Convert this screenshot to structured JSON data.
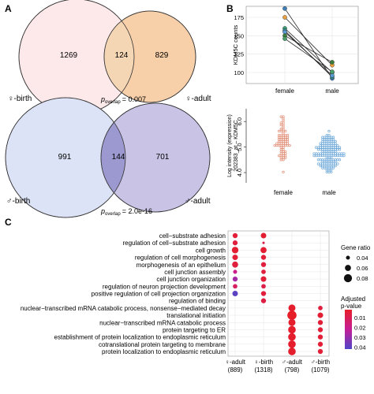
{
  "panels": {
    "A": {
      "label": "A",
      "venn_top": {
        "left_label": "♀-birth",
        "right_label": "♀-adult",
        "left_only": "1269",
        "overlap": "124",
        "right_only": "829",
        "p_prefix": "p",
        "p_sub": "overlap",
        "p_value": "= 0.007",
        "left_color": "#fde8ea",
        "right_color": "#f7cfa8"
      },
      "venn_bottom": {
        "left_label": "♂-birth",
        "right_label": "♂-adult",
        "left_only": "991",
        "overlap": "144",
        "right_only": "701",
        "p_prefix": "p",
        "p_sub": "overlap",
        "p_value": "= 2.0e-16",
        "left_color": "#dde3f6",
        "right_color": "#c9c4e6"
      }
    },
    "B": {
      "label": "B",
      "top_ylabel": "KDM5C counts",
      "bottom_ylabel": "Log intensity (expression) 202383_at – KDM5C",
      "x_categories": [
        "female",
        "male"
      ]
    },
    "C": {
      "label": "C",
      "legend_size_title": "Gene ratio",
      "legend_color_title": "Adjusted p-value",
      "legend_color_ticks": [
        "0.01",
        "0.02",
        "0.03",
        "0.04"
      ],
      "legend_size_ticks": [
        "0.04",
        "0.06",
        "0.08"
      ]
    }
  },
  "chart_data": [
    {
      "type": "line",
      "panel": "B-top",
      "categories": [
        "female",
        "male"
      ],
      "ylabel": "KDM5C counts",
      "ylim": [
        85,
        190
      ],
      "yticks": [
        100,
        125,
        150,
        175
      ],
      "series": [
        {
          "values": [
            187,
            92
          ],
          "color": "#3e7fb8"
        },
        {
          "values": [
            175,
            110
          ],
          "color": "#e8a040"
        },
        {
          "values": [
            160,
            100
          ],
          "color": "#3aa07a"
        },
        {
          "values": [
            157,
            94
          ],
          "color": "#3a8f8c"
        },
        {
          "values": [
            155,
            96
          ],
          "color": "#5b9bd5"
        },
        {
          "values": [
            150,
            114
          ],
          "color": "#3a7f3c"
        },
        {
          "values": [
            146,
            101
          ],
          "color": "#4a9f6a"
        }
      ],
      "grid": true
    },
    {
      "type": "scatter",
      "panel": "B-bottom",
      "categories": [
        "female",
        "male"
      ],
      "ylabel": "Log intensity (expression) 202383_at – KDM5C",
      "ylim": [
        3.6,
        6.5
      ],
      "yticks": [
        4.0,
        5.0,
        6.0
      ],
      "series": [
        {
          "name": "female",
          "color": "#e08a72",
          "center": 5.3,
          "spread": 0.55,
          "n": 70
        },
        {
          "name": "male",
          "color": "#6aa6d8",
          "center": 4.8,
          "spread": 0.45,
          "n": 150
        }
      ]
    },
    {
      "type": "dotplot",
      "panel": "C",
      "categories": [
        "♀-adult\n(889)",
        "♀-birth\n(1318)",
        "♂-adult\n(798)",
        "♂-birth\n(1079)"
      ],
      "terms": [
        "cell−substrate adhesion",
        "regulation of cell−substrate adhesion",
        "cell growth",
        "regulation of cell morphogenesis",
        "morphogenesis of an epithelium",
        "cell junction assembly",
        "cell junction organization",
        "regulation of neuron projection development",
        "positive regulation of cell projection organization",
        "regulation of binding",
        "nuclear−transcribed mRNA catabolic process, nonsense−mediated decay",
        "translational initiation",
        "nuclear−transcribed mRNA catabolic process",
        "protein targeting to ER",
        "establishment of protein localization to endoplasmic reticulum",
        "cotranslational protein targeting to membrane",
        "protein localization to endoplasmic reticulum"
      ],
      "points": [
        {
          "term": 0,
          "col": 0,
          "ratio": 0.05,
          "padj": 0.005
        },
        {
          "term": 0,
          "col": 1,
          "ratio": 0.055,
          "padj": 0.004
        },
        {
          "term": 1,
          "col": 0,
          "ratio": 0.05,
          "padj": 0.006
        },
        {
          "term": 1,
          "col": 1,
          "ratio": 0.025,
          "padj": 0.008
        },
        {
          "term": 2,
          "col": 0,
          "ratio": 0.065,
          "padj": 0.004
        },
        {
          "term": 2,
          "col": 1,
          "ratio": 0.06,
          "padj": 0.004
        },
        {
          "term": 3,
          "col": 0,
          "ratio": 0.055,
          "padj": 0.005
        },
        {
          "term": 3,
          "col": 1,
          "ratio": 0.05,
          "padj": 0.005
        },
        {
          "term": 4,
          "col": 0,
          "ratio": 0.06,
          "padj": 0.006
        },
        {
          "term": 4,
          "col": 1,
          "ratio": 0.05,
          "padj": 0.006
        },
        {
          "term": 5,
          "col": 0,
          "ratio": 0.04,
          "padj": 0.02
        },
        {
          "term": 5,
          "col": 1,
          "ratio": 0.045,
          "padj": 0.006
        },
        {
          "term": 6,
          "col": 0,
          "ratio": 0.05,
          "padj": 0.028
        },
        {
          "term": 6,
          "col": 1,
          "ratio": 0.055,
          "padj": 0.005
        },
        {
          "term": 7,
          "col": 0,
          "ratio": 0.045,
          "padj": 0.012
        },
        {
          "term": 7,
          "col": 1,
          "ratio": 0.045,
          "padj": 0.008
        },
        {
          "term": 8,
          "col": 0,
          "ratio": 0.055,
          "padj": 0.04
        },
        {
          "term": 8,
          "col": 1,
          "ratio": 0.05,
          "padj": 0.006
        },
        {
          "term": 9,
          "col": 1,
          "ratio": 0.05,
          "padj": 0.007
        },
        {
          "term": 10,
          "col": 2,
          "ratio": 0.07,
          "padj": 0.003
        },
        {
          "term": 10,
          "col": 3,
          "ratio": 0.045,
          "padj": 0.006
        },
        {
          "term": 11,
          "col": 2,
          "ratio": 0.09,
          "padj": 0.002
        },
        {
          "term": 11,
          "col": 3,
          "ratio": 0.055,
          "padj": 0.004
        },
        {
          "term": 12,
          "col": 2,
          "ratio": 0.07,
          "padj": 0.003
        },
        {
          "term": 12,
          "col": 3,
          "ratio": 0.05,
          "padj": 0.005
        },
        {
          "term": 13,
          "col": 2,
          "ratio": 0.075,
          "padj": 0.003
        },
        {
          "term": 13,
          "col": 3,
          "ratio": 0.05,
          "padj": 0.005
        },
        {
          "term": 14,
          "col": 2,
          "ratio": 0.075,
          "padj": 0.003
        },
        {
          "term": 14,
          "col": 3,
          "ratio": 0.05,
          "padj": 0.005
        },
        {
          "term": 15,
          "col": 2,
          "ratio": 0.075,
          "padj": 0.003
        },
        {
          "term": 15,
          "col": 3,
          "ratio": 0.05,
          "padj": 0.005
        },
        {
          "term": 16,
          "col": 2,
          "ratio": 0.075,
          "padj": 0.003
        },
        {
          "term": 16,
          "col": 3,
          "ratio": 0.05,
          "padj": 0.005
        }
      ],
      "legend": {
        "size_title": "Gene ratio",
        "color_title": "Adjusted p-value"
      }
    }
  ]
}
